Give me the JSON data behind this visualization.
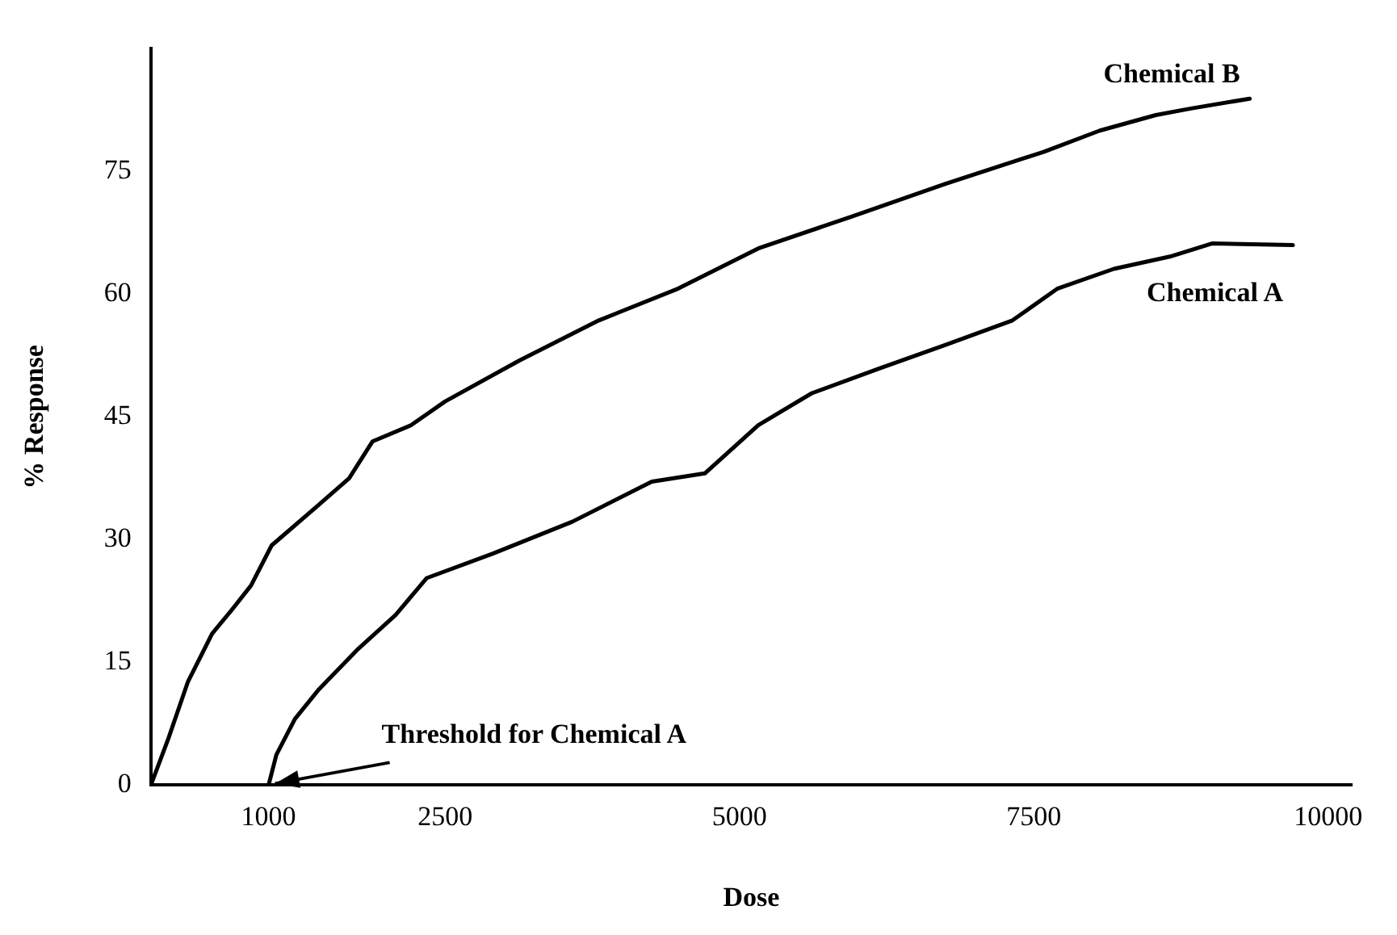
{
  "chart_data": {
    "type": "line",
    "xlabel": "Dose",
    "ylabel": "% Response",
    "xlim": [
      0,
      10200
    ],
    "xticks": [
      1000,
      2500,
      5000,
      7500,
      10000
    ],
    "ylim": [
      0,
      90
    ],
    "yticks": [
      0,
      15,
      30,
      45,
      60,
      75
    ],
    "grid": false,
    "legend": false,
    "marker": "none",
    "line_style": "solid",
    "series": [
      {
        "name": "Chemical B",
        "color": "#000000",
        "x": [
          0,
          149,
          314,
          520,
          686,
          851,
          1026,
          1421,
          1684,
          1882,
          2211,
          2500,
          3130,
          3805,
          4480,
          5159,
          5955,
          6750,
          7583,
          8060,
          8536,
          8834,
          9333
        ],
        "values": [
          0,
          5.7,
          12.6,
          18.5,
          21.4,
          24.4,
          29.3,
          34.2,
          37.5,
          42,
          44,
          46.9,
          51.9,
          56.8,
          60.7,
          65.6,
          69.5,
          73.5,
          77.4,
          80,
          81.9,
          82.7,
          83.9
        ]
      },
      {
        "name": "Chemical A",
        "color": "#000000",
        "x": [
          1000,
          1066,
          1224,
          1421,
          1750,
          2079,
          2342,
          2905,
          3580,
          4255,
          4705,
          5159,
          5614,
          6182,
          6750,
          7318,
          7702,
          8179,
          8655,
          9012,
          9700
        ],
        "values": [
          0,
          3.7,
          8.1,
          11.6,
          16.5,
          20.8,
          25.3,
          28.3,
          32.2,
          37.1,
          38.1,
          44,
          47.9,
          50.9,
          53.8,
          56.8,
          60.7,
          63.1,
          64.6,
          66.2,
          66
        ]
      }
    ],
    "annotations": [
      {
        "text": "Threshold for Chemical A",
        "x": 1000,
        "y": 0
      }
    ]
  }
}
